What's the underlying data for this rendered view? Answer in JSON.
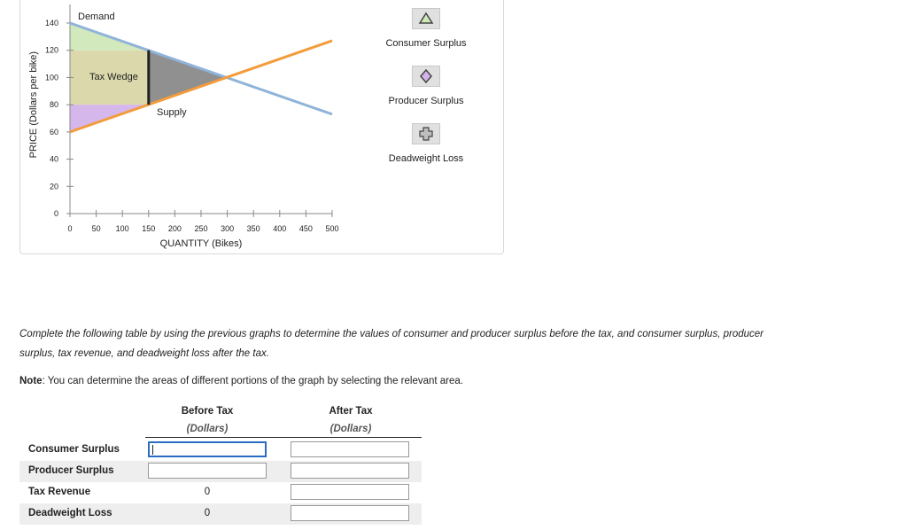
{
  "chart_data": {
    "type": "line",
    "xlabel": "QUANTITY (Bikes)",
    "ylabel": "PRICE (Dollars per bike)",
    "xlim": [
      0,
      500
    ],
    "ylim": [
      0,
      140
    ],
    "x_ticks": [
      0,
      50,
      100,
      150,
      200,
      250,
      300,
      350,
      400,
      450,
      500
    ],
    "y_ticks": [
      0,
      20,
      40,
      60,
      80,
      100,
      120,
      140
    ],
    "series": [
      {
        "name": "Demand",
        "color": "#8fb3d9",
        "points": [
          [
            0,
            140
          ],
          [
            500,
            73
          ]
        ]
      },
      {
        "name": "Supply",
        "color": "#f39c3c",
        "points": [
          [
            0,
            60
          ],
          [
            500,
            127
          ]
        ]
      }
    ],
    "tax_wedge": {
      "label": "Tax Wedge",
      "quantity": 150,
      "price_top": 120,
      "price_bottom": 80,
      "color": "#222222"
    },
    "shaded_areas": [
      {
        "name": "Consumer Surplus",
        "color": "#cfe8b8",
        "polygon": [
          [
            0,
            140
          ],
          [
            150,
            120
          ],
          [
            0,
            120
          ]
        ]
      },
      {
        "name": "Tax Revenue",
        "color": "#d9d7a8",
        "polygon": [
          [
            0,
            120
          ],
          [
            150,
            120
          ],
          [
            150,
            80
          ],
          [
            0,
            80
          ]
        ]
      },
      {
        "name": "Producer Surplus",
        "color": "#d3b3ea",
        "polygon": [
          [
            0,
            80
          ],
          [
            150,
            80
          ],
          [
            0,
            60
          ]
        ]
      },
      {
        "name": "Deadweight Loss",
        "color": "#8a8a8a",
        "polygon": [
          [
            150,
            120
          ],
          [
            300,
            100
          ],
          [
            150,
            80
          ]
        ]
      }
    ]
  },
  "legend": [
    {
      "label": "Consumer Surplus",
      "icon": "triangle-icon",
      "color": "#cfe8b8"
    },
    {
      "label": "Producer Surplus",
      "icon": "diamond-icon",
      "color": "#d3b3ea"
    },
    {
      "label": "Deadweight Loss",
      "icon": "plus-icon",
      "color": "#bfbfbf"
    }
  ],
  "instructions": "Complete the following table by using the previous graphs to determine the values of consumer and producer surplus before the tax, and consumer surplus, producer surplus, tax revenue, and deadweight loss after the tax.",
  "note": {
    "label": "Note",
    "text": ": You can determine the areas of different portions of the graph by selecting the relevant area."
  },
  "table": {
    "col_before": "Before Tax",
    "col_before_unit": "(Dollars)",
    "col_after": "After Tax",
    "col_after_unit": "(Dollars)",
    "rows": [
      {
        "label": "Consumer Surplus",
        "before": "",
        "after": ""
      },
      {
        "label": "Producer Surplus",
        "before": "",
        "after": ""
      },
      {
        "label": "Tax Revenue",
        "before": "0",
        "after": ""
      },
      {
        "label": "Deadweight Loss",
        "before": "0",
        "after": ""
      }
    ]
  }
}
